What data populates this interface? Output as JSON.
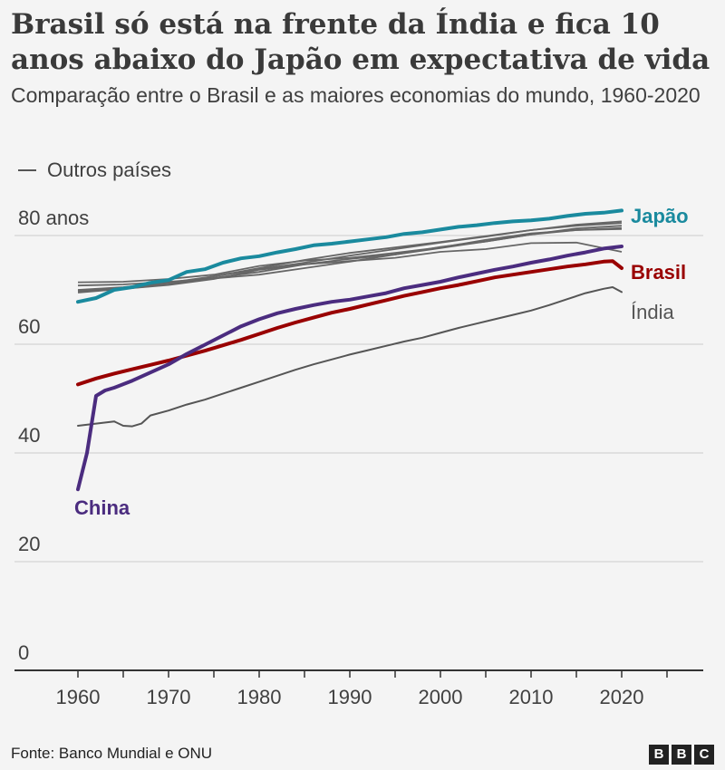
{
  "header": {
    "title": "Brasil só está na frente da Índia e fica 10 anos abaixo do Japão em expectativa de vida",
    "subtitle": "Comparação entre o Brasil e as maiores economias do mundo, 1960-2020"
  },
  "legend": {
    "label": "Outros países"
  },
  "footer": {
    "source": "Fonte: Banco Mundial e ONU",
    "logo": [
      "B",
      "B",
      "C"
    ]
  },
  "chart_data": {
    "type": "line",
    "title": "Brasil só está na frente da Índia e fica 10 anos abaixo do Japão em expectativa de vida",
    "subtitle": "Comparação entre o Brasil e as maiores economias do mundo, 1960-2020",
    "xlim": [
      1953,
      2029
    ],
    "ylim": [
      0,
      85
    ],
    "x_ticks": [
      1960,
      1970,
      1980,
      1990,
      2000,
      2010,
      2020
    ],
    "y_ticks": [
      {
        "value": 0,
        "label": "0"
      },
      {
        "value": 20,
        "label": "20"
      },
      {
        "value": 40,
        "label": "40"
      },
      {
        "value": 60,
        "label": "60"
      },
      {
        "value": 80,
        "label": "80 anos"
      }
    ],
    "grid": true,
    "legend_position": "top-left",
    "colors": {
      "japao": "#1a8a9e",
      "brasil": "#990000",
      "china": "#4b2c7f",
      "india": "#555555",
      "outros": "#666666",
      "grid": "#cccccc",
      "axis": "#333333"
    },
    "series": [
      {
        "name": "Japão",
        "color": "#1a8a9e",
        "width": 4,
        "points": [
          [
            1960,
            67.8
          ],
          [
            1962,
            68.5
          ],
          [
            1964,
            70.0
          ],
          [
            1966,
            70.5
          ],
          [
            1968,
            71.3
          ],
          [
            1970,
            71.8
          ],
          [
            1972,
            73.3
          ],
          [
            1974,
            73.8
          ],
          [
            1976,
            75.0
          ],
          [
            1978,
            75.8
          ],
          [
            1980,
            76.2
          ],
          [
            1982,
            76.9
          ],
          [
            1984,
            77.5
          ],
          [
            1986,
            78.2
          ],
          [
            1988,
            78.5
          ],
          [
            1990,
            78.9
          ],
          [
            1992,
            79.3
          ],
          [
            1994,
            79.7
          ],
          [
            1996,
            80.3
          ],
          [
            1998,
            80.6
          ],
          [
            2000,
            81.1
          ],
          [
            2002,
            81.6
          ],
          [
            2004,
            81.9
          ],
          [
            2006,
            82.3
          ],
          [
            2008,
            82.6
          ],
          [
            2010,
            82.8
          ],
          [
            2012,
            83.1
          ],
          [
            2014,
            83.6
          ],
          [
            2016,
            84.0
          ],
          [
            2018,
            84.2
          ],
          [
            2020,
            84.6
          ]
        ]
      },
      {
        "name": "Brasil",
        "color": "#990000",
        "width": 4,
        "points": [
          [
            1960,
            52.6
          ],
          [
            1962,
            53.7
          ],
          [
            1964,
            54.6
          ],
          [
            1966,
            55.4
          ],
          [
            1968,
            56.2
          ],
          [
            1970,
            57.0
          ],
          [
            1972,
            57.9
          ],
          [
            1974,
            58.8
          ],
          [
            1976,
            59.8
          ],
          [
            1978,
            60.8
          ],
          [
            1980,
            61.9
          ],
          [
            1982,
            63.0
          ],
          [
            1984,
            64.0
          ],
          [
            1986,
            64.9
          ],
          [
            1988,
            65.8
          ],
          [
            1990,
            66.5
          ],
          [
            1992,
            67.3
          ],
          [
            1994,
            68.1
          ],
          [
            1996,
            68.9
          ],
          [
            1998,
            69.6
          ],
          [
            2000,
            70.3
          ],
          [
            2002,
            70.9
          ],
          [
            2004,
            71.6
          ],
          [
            2006,
            72.3
          ],
          [
            2008,
            72.8
          ],
          [
            2010,
            73.3
          ],
          [
            2012,
            73.8
          ],
          [
            2014,
            74.3
          ],
          [
            2016,
            74.7
          ],
          [
            2018,
            75.2
          ],
          [
            2019,
            75.3
          ],
          [
            2020,
            74.0
          ]
        ]
      },
      {
        "name": "China",
        "color": "#4b2c7f",
        "width": 4,
        "points": [
          [
            1960,
            33.3
          ],
          [
            1961,
            40.0
          ],
          [
            1962,
            50.5
          ],
          [
            1963,
            51.5
          ],
          [
            1964,
            52.0
          ],
          [
            1966,
            53.3
          ],
          [
            1968,
            54.8
          ],
          [
            1970,
            56.3
          ],
          [
            1972,
            58.2
          ],
          [
            1974,
            59.9
          ],
          [
            1976,
            61.6
          ],
          [
            1978,
            63.3
          ],
          [
            1980,
            64.6
          ],
          [
            1982,
            65.7
          ],
          [
            1984,
            66.5
          ],
          [
            1986,
            67.2
          ],
          [
            1988,
            67.8
          ],
          [
            1990,
            68.2
          ],
          [
            1992,
            68.8
          ],
          [
            1994,
            69.4
          ],
          [
            1996,
            70.3
          ],
          [
            1998,
            70.9
          ],
          [
            2000,
            71.5
          ],
          [
            2002,
            72.3
          ],
          [
            2004,
            73.0
          ],
          [
            2006,
            73.7
          ],
          [
            2008,
            74.3
          ],
          [
            2010,
            75.0
          ],
          [
            2012,
            75.6
          ],
          [
            2014,
            76.3
          ],
          [
            2016,
            76.9
          ],
          [
            2018,
            77.6
          ],
          [
            2020,
            78.0
          ]
        ]
      },
      {
        "name": "Índia",
        "color": "#555555",
        "width": 2,
        "points": [
          [
            1960,
            45.0
          ],
          [
            1962,
            45.4
          ],
          [
            1964,
            45.8
          ],
          [
            1965,
            45.0
          ],
          [
            1966,
            44.9
          ],
          [
            1967,
            45.4
          ],
          [
            1968,
            46.9
          ],
          [
            1970,
            47.8
          ],
          [
            1972,
            48.9
          ],
          [
            1974,
            49.8
          ],
          [
            1976,
            50.9
          ],
          [
            1978,
            52.0
          ],
          [
            1980,
            53.1
          ],
          [
            1982,
            54.2
          ],
          [
            1984,
            55.3
          ],
          [
            1986,
            56.3
          ],
          [
            1988,
            57.2
          ],
          [
            1990,
            58.1
          ],
          [
            1992,
            58.9
          ],
          [
            1994,
            59.7
          ],
          [
            1996,
            60.5
          ],
          [
            1998,
            61.2
          ],
          [
            2000,
            62.1
          ],
          [
            2002,
            63.0
          ],
          [
            2004,
            63.8
          ],
          [
            2006,
            64.6
          ],
          [
            2008,
            65.4
          ],
          [
            2010,
            66.2
          ],
          [
            2012,
            67.2
          ],
          [
            2014,
            68.3
          ],
          [
            2016,
            69.4
          ],
          [
            2018,
            70.2
          ],
          [
            2019,
            70.5
          ],
          [
            2020,
            69.6
          ]
        ]
      }
    ],
    "other_countries": [
      {
        "points": [
          [
            1960,
            69.5
          ],
          [
            1965,
            70.2
          ],
          [
            1970,
            71.0
          ],
          [
            1975,
            72.5
          ],
          [
            1980,
            74.0
          ],
          [
            1985,
            75.5
          ],
          [
            1990,
            76.8
          ],
          [
            1995,
            77.8
          ],
          [
            2000,
            78.8
          ],
          [
            2005,
            79.9
          ],
          [
            2010,
            81.0
          ],
          [
            2015,
            81.8
          ],
          [
            2020,
            82.3
          ]
        ]
      },
      {
        "points": [
          [
            1960,
            70.0
          ],
          [
            1965,
            70.5
          ],
          [
            1970,
            71.3
          ],
          [
            1975,
            72.5
          ],
          [
            1980,
            73.8
          ],
          [
            1985,
            75.0
          ],
          [
            1990,
            76.3
          ],
          [
            1995,
            77.5
          ],
          [
            2000,
            78.7
          ],
          [
            2005,
            79.8
          ],
          [
            2010,
            81.0
          ],
          [
            2015,
            82.0
          ],
          [
            2020,
            82.6
          ]
        ]
      },
      {
        "points": [
          [
            1960,
            69.8
          ],
          [
            1965,
            70.4
          ],
          [
            1970,
            71.0
          ],
          [
            1975,
            72.2
          ],
          [
            1980,
            73.3
          ],
          [
            1985,
            74.7
          ],
          [
            1990,
            75.7
          ],
          [
            1995,
            76.5
          ],
          [
            2000,
            77.9
          ],
          [
            2005,
            78.9
          ],
          [
            2010,
            80.2
          ],
          [
            2015,
            81.3
          ],
          [
            2020,
            81.8
          ]
        ]
      },
      {
        "points": [
          [
            1960,
            70.8
          ],
          [
            1965,
            71.0
          ],
          [
            1970,
            71.5
          ],
          [
            1975,
            72.1
          ],
          [
            1980,
            72.8
          ],
          [
            1985,
            74.0
          ],
          [
            1990,
            75.2
          ],
          [
            1995,
            76.5
          ],
          [
            2000,
            77.7
          ],
          [
            2005,
            78.9
          ],
          [
            2010,
            80.2
          ],
          [
            2015,
            81.0
          ],
          [
            2020,
            81.4
          ]
        ]
      },
      {
        "points": [
          [
            1960,
            69.8
          ],
          [
            1965,
            70.2
          ],
          [
            1970,
            70.9
          ],
          [
            1975,
            72.0
          ],
          [
            1980,
            73.7
          ],
          [
            1985,
            74.7
          ],
          [
            1990,
            75.3
          ],
          [
            1995,
            75.9
          ],
          [
            2000,
            77.0
          ],
          [
            2005,
            77.5
          ],
          [
            2010,
            78.6
          ],
          [
            2015,
            78.7
          ],
          [
            2020,
            77.0
          ]
        ]
      },
      {
        "points": [
          [
            1960,
            71.4
          ],
          [
            1965,
            71.5
          ],
          [
            1970,
            72.0
          ],
          [
            1975,
            72.8
          ],
          [
            1980,
            74.4
          ],
          [
            1985,
            75.4
          ],
          [
            1990,
            75.9
          ],
          [
            1995,
            76.8
          ],
          [
            2000,
            77.8
          ],
          [
            2005,
            79.2
          ],
          [
            2010,
            80.4
          ],
          [
            2015,
            81.0
          ],
          [
            2020,
            81.2
          ]
        ]
      }
    ],
    "direct_labels": [
      {
        "series": "Japão",
        "text": "Japão",
        "color": "#1a8a9e",
        "bold": true
      },
      {
        "series": "Brasil",
        "text": "Brasil",
        "color": "#990000",
        "bold": true
      },
      {
        "series": "Índia",
        "text": "Índia",
        "color": "#555555",
        "bold": false
      },
      {
        "series": "China",
        "text": "China",
        "color": "#4b2c7f",
        "bold": true
      }
    ]
  }
}
